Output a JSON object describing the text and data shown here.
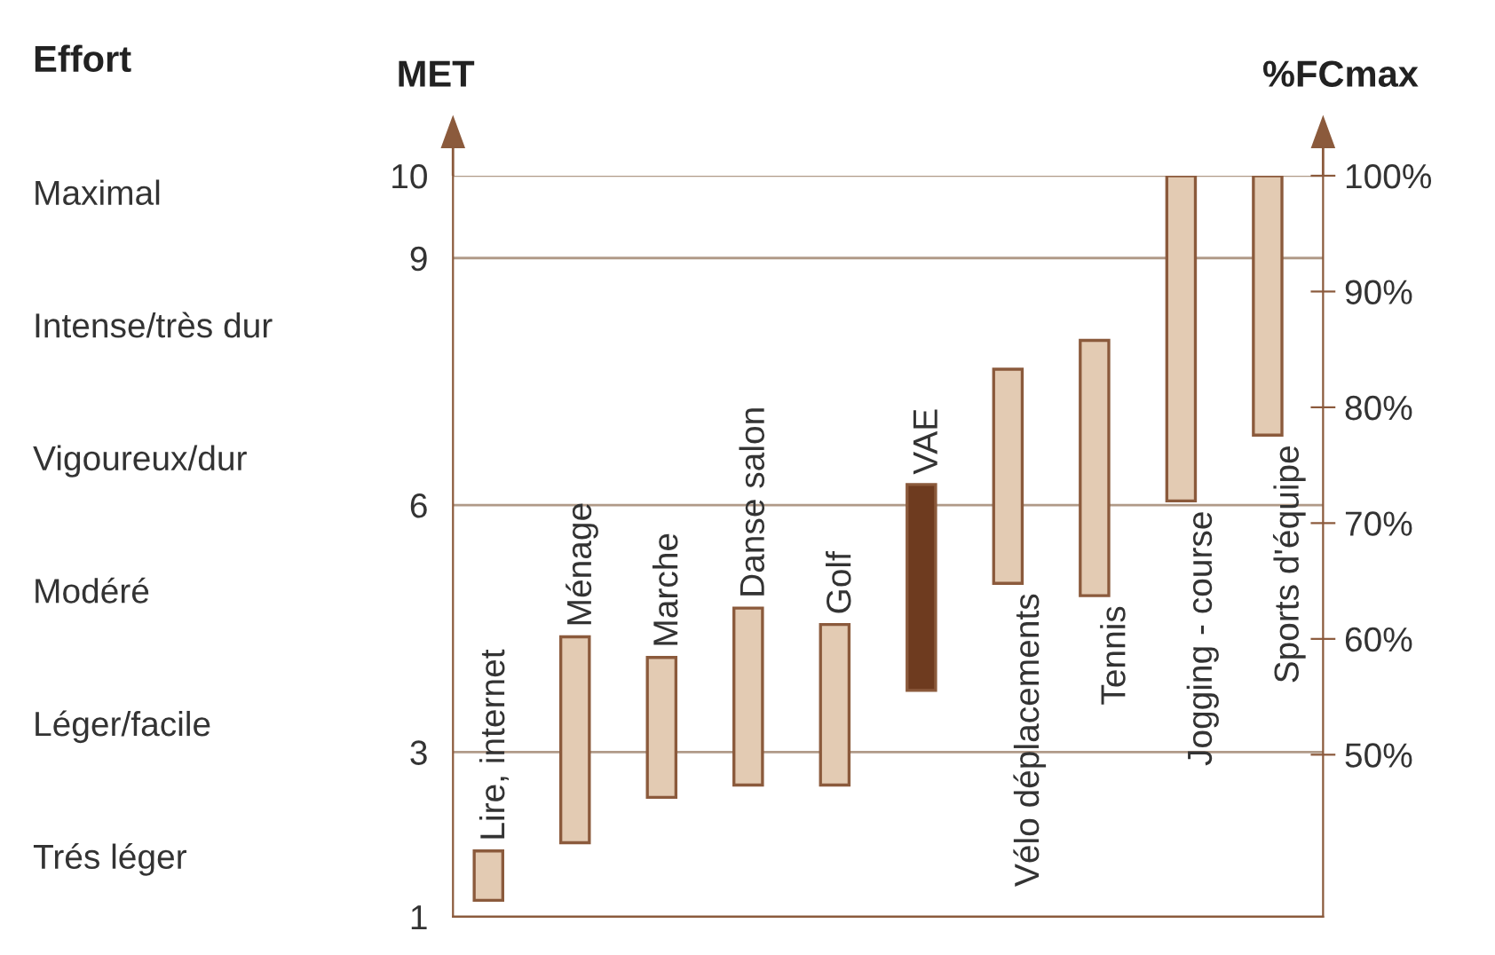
{
  "chart_data": {
    "type": "bar",
    "ylabel": "MET",
    "y2label": "%FCmax",
    "y3label": "Effort",
    "categories": [
      "Lire, internet",
      "Ménage",
      "Marche",
      "Danse salon",
      "Golf",
      "VAE",
      "Vélo déplacements",
      "Tennis",
      "Jogging - course",
      "Sports d'équipe"
    ],
    "base": [
      1.2,
      1.9,
      2.45,
      2.6,
      2.6,
      3.75,
      5.05,
      4.9,
      6.05,
      6.85
    ],
    "values": [
      0.6,
      2.5,
      1.7,
      2.15,
      1.95,
      2.5,
      2.6,
      3.1,
      3.95,
      3.15
    ],
    "colors": [
      "#e3cbb3",
      "#e3cbb3",
      "#e3cbb3",
      "#e3cbb3",
      "#e3cbb3",
      "#6e3b1f",
      "#e3cbb3",
      "#e3cbb3",
      "#e3cbb3",
      "#e3cbb3"
    ],
    "ylim": [
      1,
      10
    ],
    "yticks": [
      1,
      3,
      6,
      9,
      10
    ],
    "y2lim": [
      36,
      100
    ],
    "y2ticks": [
      {
        "value": 50,
        "label": "50%"
      },
      {
        "value": 60,
        "label": "60%"
      },
      {
        "value": 70,
        "label": "70%"
      },
      {
        "value": 80,
        "label": "80%"
      },
      {
        "value": 90,
        "label": "90%"
      },
      {
        "value": 100,
        "label": "100%"
      }
    ],
    "annotations": [
      "Maximal",
      "Intense/très dur",
      "Vigoureux/dur",
      "Modéré",
      "Léger/facile",
      "Trés léger"
    ],
    "grid": "y"
  }
}
